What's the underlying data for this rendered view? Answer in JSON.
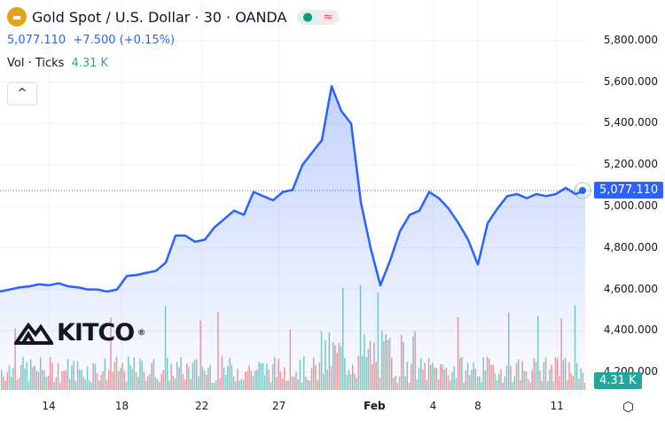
{
  "header": {
    "title": "Gold Spot / U.S. Dollar · 30 · OANDA",
    "logo_icon": "gold-bars-icon",
    "status_dot": "●",
    "status_wave": "≈"
  },
  "quote": {
    "price": "5,077.110",
    "change": "+7.500 (+0.15%)"
  },
  "volume": {
    "label": "Vol · Ticks",
    "value": "4.31 K"
  },
  "watermark": "KITCO",
  "colors": {
    "line": "#2962ff",
    "up": "#26a69a",
    "down": "#ef5350"
  },
  "chart_data": {
    "type": "area",
    "y_ticks": [
      "5,800.000",
      "5,600.000",
      "5,400.000",
      "5,200.000",
      "5,000.000",
      "4,800.000",
      "4,600.000",
      "4,400.000",
      "4,200.000"
    ],
    "y_tick_values": [
      5800,
      5600,
      5400,
      5200,
      5000,
      4800,
      4600,
      4400,
      4200
    ],
    "x_ticks": [
      {
        "label": "14",
        "index": 5
      },
      {
        "label": "18",
        "index": 12.5
      },
      {
        "label": "22",
        "index": 20.7
      },
      {
        "label": "27",
        "index": 28.6
      },
      {
        "label": "Feb",
        "index": 38.4
      },
      {
        "label": "4",
        "index": 44.4
      },
      {
        "label": "8",
        "index": 49
      },
      {
        "label": "11",
        "index": 57.1
      }
    ],
    "values": [
      4590,
      4600,
      4610,
      4615,
      4625,
      4620,
      4630,
      4615,
      4610,
      4600,
      4600,
      4590,
      4600,
      4665,
      4670,
      4680,
      4690,
      4730,
      4860,
      4860,
      4830,
      4840,
      4900,
      4940,
      4980,
      4960,
      5070,
      5050,
      5030,
      5070,
      5080,
      5200,
      5260,
      5320,
      5580,
      5460,
      5400,
      5020,
      4800,
      4620,
      4740,
      4880,
      4960,
      4980,
      5070,
      5040,
      4990,
      4920,
      4840,
      4720,
      4920,
      4990,
      5050,
      5060,
      5040,
      5060,
      5050,
      5060,
      5090,
      5060,
      5077
    ],
    "last_price_label": "5,077.110",
    "last_volume_label": "4.31 K",
    "grid": true
  }
}
